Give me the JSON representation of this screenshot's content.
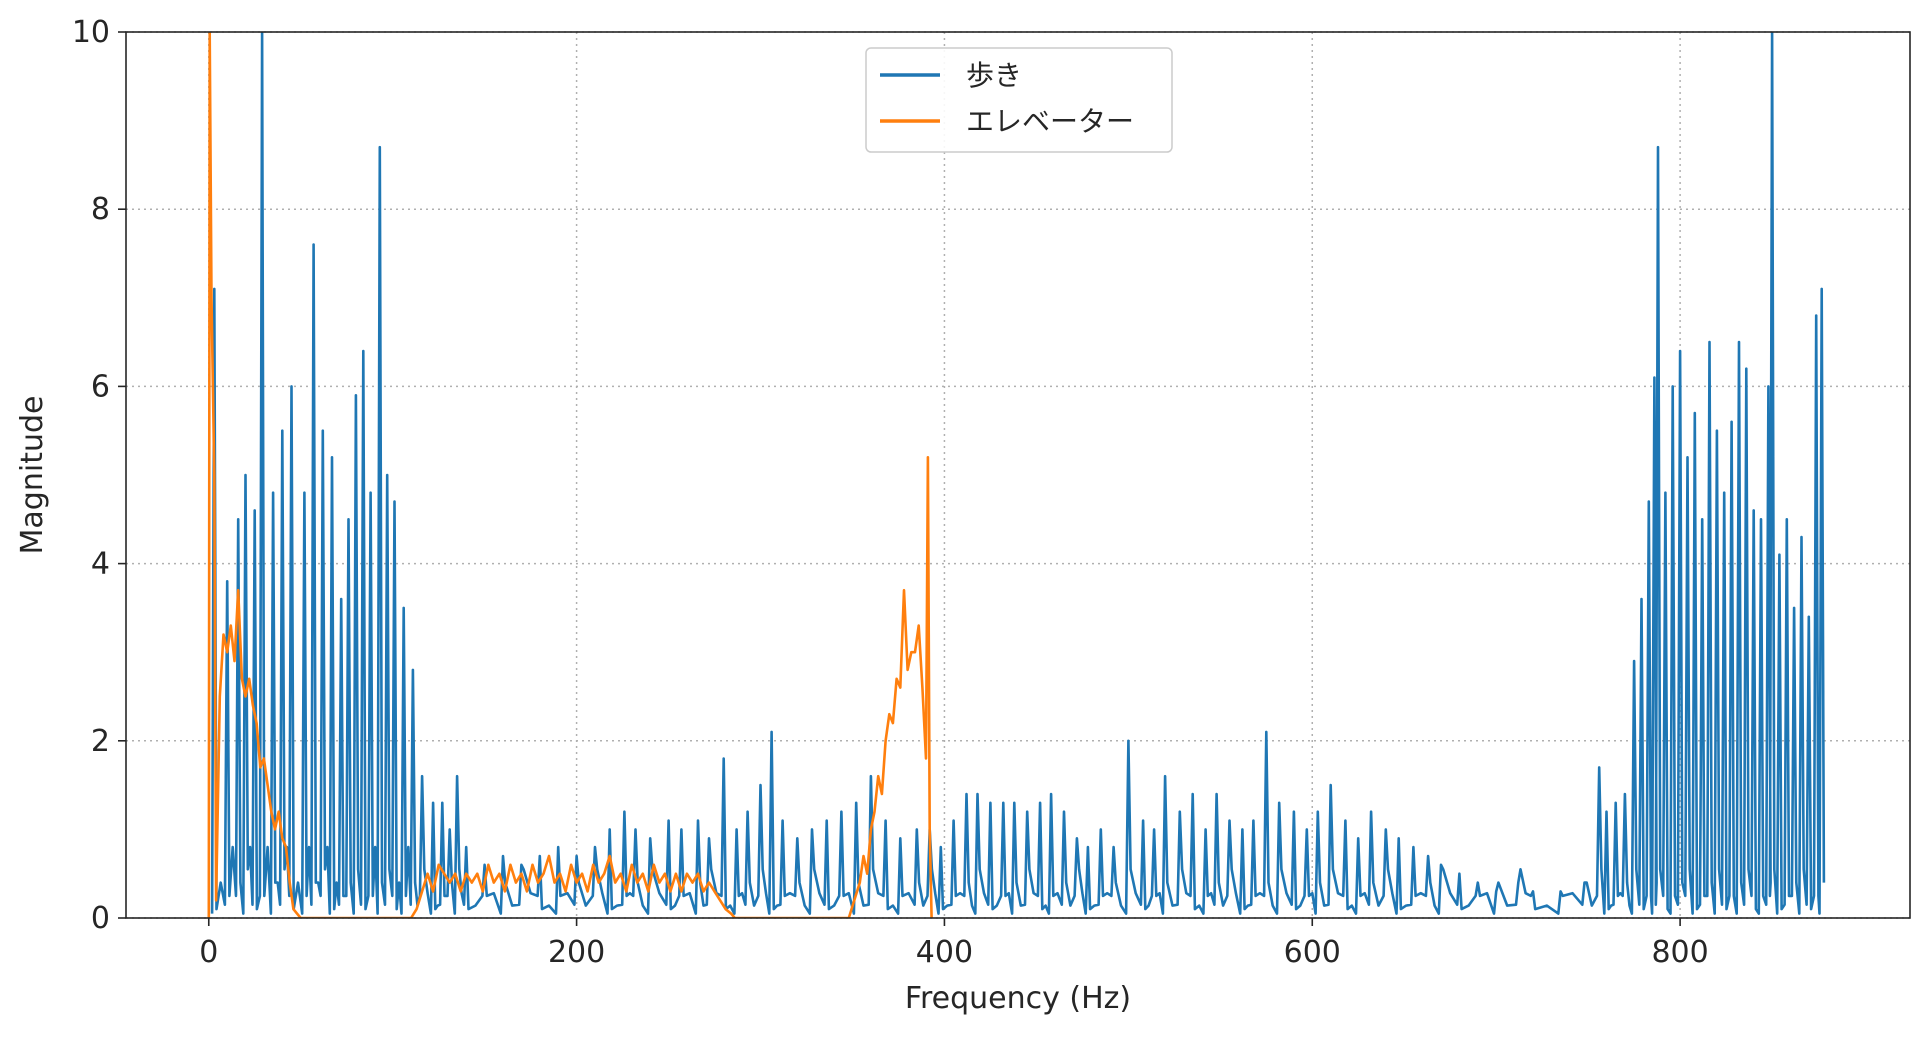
{
  "chart_data": {
    "type": "line",
    "title": "",
    "xlabel": "Frequency (Hz)",
    "ylabel": "Magnitude",
    "xlim": [
      -45,
      925
    ],
    "ylim": [
      0,
      10
    ],
    "xticks": [
      0,
      200,
      400,
      600,
      800
    ],
    "yticks": [
      0,
      2,
      4,
      6,
      8,
      10
    ],
    "grid": true,
    "grid_style": "dotted",
    "legend_placement": "top-center",
    "series": [
      {
        "name": "歩き",
        "color": "#1f77b4",
        "peaks": [
          [
            3,
            7.1
          ],
          [
            10,
            3.8
          ],
          [
            16,
            4.5
          ],
          [
            20,
            5.0
          ],
          [
            25,
            4.6
          ],
          [
            29,
            10.0
          ],
          [
            35,
            4.8
          ],
          [
            40,
            5.5
          ],
          [
            45,
            6.0
          ],
          [
            52,
            4.8
          ],
          [
            57,
            7.6
          ],
          [
            62,
            5.5
          ],
          [
            67,
            5.2
          ],
          [
            72,
            3.6
          ],
          [
            76,
            4.5
          ],
          [
            80,
            5.9
          ],
          [
            84,
            6.4
          ],
          [
            88,
            4.8
          ],
          [
            93,
            8.7
          ],
          [
            97,
            5.0
          ],
          [
            101,
            4.7
          ],
          [
            106,
            3.5
          ],
          [
            111,
            2.8
          ],
          [
            116,
            1.6
          ],
          [
            122,
            1.3
          ],
          [
            127,
            1.3
          ],
          [
            131,
            1.0
          ],
          [
            135,
            1.6
          ],
          [
            140,
            0.8
          ],
          [
            150,
            0.6
          ],
          [
            160,
            0.7
          ],
          [
            170,
            0.6
          ],
          [
            180,
            0.7
          ],
          [
            190,
            0.8
          ],
          [
            200,
            0.7
          ],
          [
            210,
            0.8
          ],
          [
            218,
            1.0
          ],
          [
            226,
            1.2
          ],
          [
            232,
            1.0
          ],
          [
            240,
            0.9
          ],
          [
            250,
            1.1
          ],
          [
            257,
            1.0
          ],
          [
            266,
            1.1
          ],
          [
            272,
            0.9
          ],
          [
            280,
            1.8
          ],
          [
            287,
            1.0
          ],
          [
            293,
            1.2
          ],
          [
            300,
            1.5
          ],
          [
            306,
            2.1
          ],
          [
            312,
            1.1
          ],
          [
            320,
            0.9
          ],
          [
            328,
            1.0
          ],
          [
            336,
            1.1
          ],
          [
            344,
            1.2
          ],
          [
            352,
            1.3
          ],
          [
            360,
            1.6
          ],
          [
            368,
            1.1
          ],
          [
            376,
            0.9
          ],
          [
            385,
            1.0
          ],
          [
            392,
            1.0
          ],
          [
            398,
            0.8
          ],
          [
            405,
            1.1
          ],
          [
            412,
            1.4
          ],
          [
            418,
            1.4
          ],
          [
            425,
            1.3
          ],
          [
            432,
            1.3
          ],
          [
            438,
            1.3
          ],
          [
            445,
            1.2
          ],
          [
            452,
            1.3
          ],
          [
            458,
            1.4
          ],
          [
            465,
            1.2
          ],
          [
            472,
            0.9
          ],
          [
            478,
            0.8
          ],
          [
            485,
            1.0
          ],
          [
            492,
            0.8
          ],
          [
            500,
            2.0
          ],
          [
            508,
            1.1
          ],
          [
            514,
            1.0
          ],
          [
            520,
            1.6
          ],
          [
            528,
            1.2
          ],
          [
            535,
            1.4
          ],
          [
            542,
            1.0
          ],
          [
            548,
            1.4
          ],
          [
            555,
            1.1
          ],
          [
            562,
            1.0
          ],
          [
            568,
            1.1
          ],
          [
            575,
            2.1
          ],
          [
            582,
            1.3
          ],
          [
            590,
            1.2
          ],
          [
            597,
            1.0
          ],
          [
            603,
            1.2
          ],
          [
            610,
            1.5
          ],
          [
            618,
            1.1
          ],
          [
            625,
            0.9
          ],
          [
            632,
            1.2
          ],
          [
            640,
            1.0
          ],
          [
            647,
            0.9
          ],
          [
            655,
            0.8
          ],
          [
            663,
            0.7
          ],
          [
            670,
            0.6
          ],
          [
            680,
            0.5
          ],
          [
            690,
            0.4
          ],
          [
            700,
            0.3
          ],
          [
            712,
            0.4
          ],
          [
            720,
            0.3
          ],
          [
            735,
            0.3
          ],
          [
            748,
            0.4
          ],
          [
            756,
            1.7
          ],
          [
            760,
            1.2
          ],
          [
            765,
            1.3
          ],
          [
            770,
            1.4
          ],
          [
            775,
            2.9
          ],
          [
            779,
            3.6
          ],
          [
            783,
            4.7
          ],
          [
            786,
            6.1
          ],
          [
            788,
            8.7
          ],
          [
            792,
            4.8
          ],
          [
            796,
            6.0
          ],
          [
            800,
            6.4
          ],
          [
            804,
            5.2
          ],
          [
            808,
            5.7
          ],
          [
            812,
            4.5
          ],
          [
            816,
            6.5
          ],
          [
            820,
            5.5
          ],
          [
            824,
            4.8
          ],
          [
            828,
            5.6
          ],
          [
            832,
            6.5
          ],
          [
            836,
            6.2
          ],
          [
            840,
            4.6
          ],
          [
            844,
            4.5
          ],
          [
            848,
            6.0
          ],
          [
            850,
            10.0
          ],
          [
            854,
            4.1
          ],
          [
            858,
            4.5
          ],
          [
            862,
            3.5
          ],
          [
            866,
            4.3
          ],
          [
            870,
            3.4
          ],
          [
            874,
            6.8
          ],
          [
            877,
            7.1
          ]
        ]
      },
      {
        "name": "エレベーター",
        "color": "#ff7f0e",
        "points": [
          [
            0,
            0.0
          ],
          [
            0.5,
            10.0
          ],
          [
            1.5,
            7.0
          ],
          [
            3,
            5.0
          ],
          [
            4,
            0.2
          ],
          [
            6,
            2.5
          ],
          [
            8,
            3.2
          ],
          [
            10,
            3.0
          ],
          [
            12,
            3.3
          ],
          [
            14,
            2.9
          ],
          [
            16,
            3.7
          ],
          [
            18,
            2.7
          ],
          [
            20,
            2.5
          ],
          [
            22,
            2.7
          ],
          [
            24,
            2.4
          ],
          [
            26,
            2.2
          ],
          [
            28,
            1.7
          ],
          [
            30,
            1.8
          ],
          [
            32,
            1.5
          ],
          [
            34,
            1.2
          ],
          [
            36,
            1.0
          ],
          [
            38,
            1.2
          ],
          [
            40,
            0.9
          ],
          [
            42,
            0.8
          ],
          [
            44,
            0.4
          ],
          [
            46,
            0.1
          ],
          [
            48,
            0.05
          ],
          [
            50,
            0.0
          ],
          [
            110,
            0.0
          ],
          [
            113,
            0.1
          ],
          [
            116,
            0.3
          ],
          [
            119,
            0.5
          ],
          [
            122,
            0.3
          ],
          [
            125,
            0.6
          ],
          [
            128,
            0.5
          ],
          [
            131,
            0.4
          ],
          [
            134,
            0.5
          ],
          [
            137,
            0.3
          ],
          [
            140,
            0.5
          ],
          [
            143,
            0.4
          ],
          [
            146,
            0.5
          ],
          [
            149,
            0.3
          ],
          [
            152,
            0.6
          ],
          [
            155,
            0.4
          ],
          [
            158,
            0.5
          ],
          [
            161,
            0.3
          ],
          [
            164,
            0.6
          ],
          [
            167,
            0.4
          ],
          [
            170,
            0.5
          ],
          [
            173,
            0.3
          ],
          [
            176,
            0.6
          ],
          [
            179,
            0.4
          ],
          [
            182,
            0.5
          ],
          [
            185,
            0.7
          ],
          [
            188,
            0.4
          ],
          [
            191,
            0.5
          ],
          [
            194,
            0.3
          ],
          [
            197,
            0.6
          ],
          [
            200,
            0.4
          ],
          [
            203,
            0.5
          ],
          [
            206,
            0.3
          ],
          [
            209,
            0.6
          ],
          [
            212,
            0.4
          ],
          [
            215,
            0.5
          ],
          [
            218,
            0.7
          ],
          [
            221,
            0.4
          ],
          [
            224,
            0.5
          ],
          [
            227,
            0.3
          ],
          [
            230,
            0.6
          ],
          [
            233,
            0.4
          ],
          [
            236,
            0.5
          ],
          [
            239,
            0.3
          ],
          [
            242,
            0.6
          ],
          [
            245,
            0.4
          ],
          [
            248,
            0.5
          ],
          [
            251,
            0.3
          ],
          [
            254,
            0.5
          ],
          [
            257,
            0.3
          ],
          [
            260,
            0.5
          ],
          [
            263,
            0.4
          ],
          [
            266,
            0.5
          ],
          [
            269,
            0.3
          ],
          [
            272,
            0.4
          ],
          [
            275,
            0.3
          ],
          [
            278,
            0.2
          ],
          [
            281,
            0.1
          ],
          [
            284,
            0.05
          ],
          [
            286,
            0.0
          ],
          [
            348,
            0.0
          ],
          [
            351,
            0.2
          ],
          [
            354,
            0.4
          ],
          [
            356,
            0.7
          ],
          [
            358,
            0.5
          ],
          [
            360,
            1.0
          ],
          [
            362,
            1.2
          ],
          [
            364,
            1.6
          ],
          [
            366,
            1.4
          ],
          [
            368,
            2.0
          ],
          [
            370,
            2.3
          ],
          [
            372,
            2.2
          ],
          [
            374,
            2.7
          ],
          [
            376,
            2.6
          ],
          [
            378,
            3.7
          ],
          [
            380,
            2.8
          ],
          [
            382,
            3.0
          ],
          [
            384,
            3.0
          ],
          [
            386,
            3.3
          ],
          [
            388,
            2.6
          ],
          [
            390,
            1.8
          ],
          [
            391,
            5.2
          ],
          [
            392,
            1.0
          ],
          [
            393,
            0.0
          ]
        ]
      }
    ]
  }
}
